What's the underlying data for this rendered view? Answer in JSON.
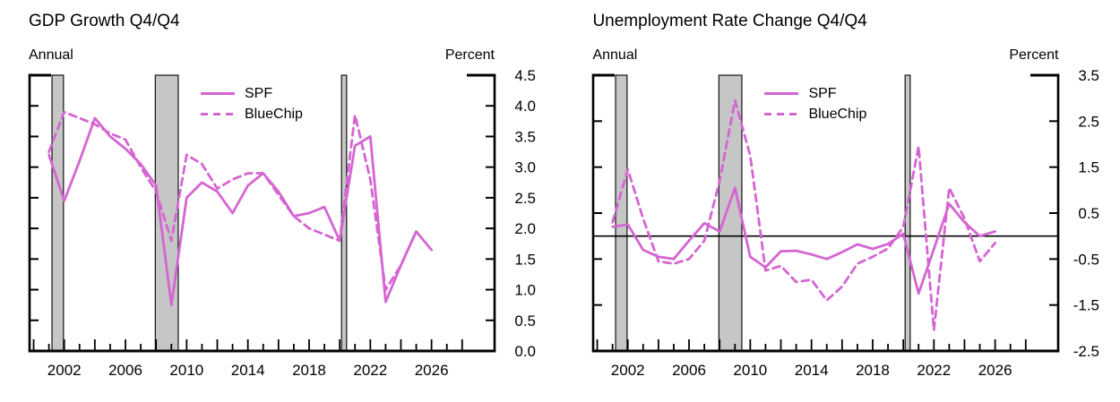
{
  "colors": {
    "line": "#d565d2",
    "band_fill": "#c6c6c6",
    "band_border": "#111111",
    "axis": "#000000",
    "background": "#ffffff"
  },
  "chart_data": [
    {
      "type": "line",
      "title": "GDP Growth Q4/Q4",
      "top_left_label": "Annual",
      "top_right_label": "Percent",
      "legend": [
        {
          "label": "SPF",
          "style": "solid"
        },
        {
          "label": "BlueChip",
          "style": "dashed"
        }
      ],
      "y_axis": {
        "min": 0.0,
        "max": 4.5,
        "tick_values": [
          0.0,
          0.5,
          1.0,
          1.5,
          2.0,
          2.5,
          3.0,
          3.5,
          4.0,
          4.5
        ],
        "tick_labels": [
          "0.0",
          "0.5",
          "1.0",
          "1.5",
          "2.0",
          "2.5",
          "3.0",
          "3.5",
          "4.0",
          "4.5"
        ]
      },
      "x_axis": {
        "tick_start": 2000,
        "tick_end": 2028,
        "label_years": [
          2002,
          2006,
          2010,
          2014,
          2018,
          2022,
          2026
        ],
        "labels": [
          "2002",
          "2006",
          "2010",
          "2014",
          "2018",
          "2022",
          "2026"
        ]
      },
      "zero_line": false,
      "recession_bands": [
        [
          2001.2,
          2001.95
        ],
        [
          2007.95,
          2009.45
        ],
        [
          2020.12,
          2020.45
        ]
      ],
      "series": [
        {
          "name": "SPF",
          "style": "solid",
          "years": [
            2001,
            2002,
            2003,
            2004,
            2005,
            2006,
            2007,
            2008,
            2009,
            2010,
            2011,
            2012,
            2013,
            2014,
            2015,
            2016,
            2017,
            2018,
            2019,
            2020,
            2021,
            2022,
            2023,
            2024,
            2025,
            2026
          ],
          "values": [
            3.2,
            2.45,
            3.1,
            3.8,
            3.5,
            3.3,
            3.05,
            2.7,
            0.75,
            2.5,
            2.75,
            2.6,
            2.25,
            2.7,
            2.9,
            2.6,
            2.2,
            2.25,
            2.35,
            1.8,
            3.35,
            3.5,
            0.8,
            1.4,
            1.95,
            1.65
          ]
        },
        {
          "name": "BlueChip",
          "style": "dashed",
          "years": [
            2001,
            2002,
            2003,
            2004,
            2005,
            2006,
            2007,
            2008,
            2009,
            2010,
            2011,
            2012,
            2013,
            2014,
            2015,
            2016,
            2017,
            2018,
            2019,
            2020,
            2021,
            2022,
            2023,
            2024,
            2025
          ],
          "values": [
            3.25,
            3.9,
            3.8,
            3.7,
            3.55,
            3.45,
            3.0,
            2.6,
            1.8,
            3.2,
            3.05,
            2.65,
            2.8,
            2.9,
            2.9,
            2.55,
            2.2,
            2.0,
            1.9,
            1.8,
            3.85,
            2.8,
            1.0,
            1.4,
            1.95
          ]
        }
      ]
    },
    {
      "type": "line",
      "title": "Unemployment Rate Change Q4/Q4",
      "top_left_label": "Annual",
      "top_right_label": "Percent",
      "legend": [
        {
          "label": "SPF",
          "style": "solid"
        },
        {
          "label": "BlueChip",
          "style": "dashed"
        }
      ],
      "y_axis": {
        "min": -2.5,
        "max": 3.5,
        "tick_values": [
          -2.5,
          -1.5,
          -0.5,
          0.5,
          1.5,
          2.5,
          3.5
        ],
        "tick_labels": [
          "-2.5",
          "-1.5",
          "-0.5",
          "0.5",
          "1.5",
          "2.5",
          "3.5"
        ]
      },
      "x_axis": {
        "tick_start": 2000,
        "tick_end": 2028,
        "label_years": [
          2002,
          2006,
          2010,
          2014,
          2018,
          2022,
          2026
        ],
        "labels": [
          "2002",
          "2006",
          "2010",
          "2014",
          "2018",
          "2022",
          "2026"
        ]
      },
      "zero_line": true,
      "recession_bands": [
        [
          2001.2,
          2001.95
        ],
        [
          2007.95,
          2009.45
        ],
        [
          2020.12,
          2020.45
        ]
      ],
      "series": [
        {
          "name": "SPF",
          "style": "solid",
          "years": [
            2001,
            2002,
            2003,
            2004,
            2005,
            2006,
            2007,
            2008,
            2009,
            2010,
            2011,
            2012,
            2013,
            2014,
            2015,
            2016,
            2017,
            2018,
            2019,
            2020,
            2021,
            2022,
            2023,
            2024,
            2025,
            2026
          ],
          "values": [
            0.2,
            0.25,
            -0.3,
            -0.45,
            -0.5,
            -0.1,
            0.28,
            0.1,
            1.05,
            -0.45,
            -0.68,
            -0.33,
            -0.32,
            -0.4,
            -0.5,
            -0.35,
            -0.18,
            -0.28,
            -0.17,
            0.05,
            -1.25,
            -0.28,
            0.7,
            0.3,
            0.0,
            0.1
          ]
        },
        {
          "name": "BlueChip",
          "style": "dashed",
          "years": [
            2001,
            2002,
            2003,
            2004,
            2005,
            2006,
            2007,
            2008,
            2009,
            2010,
            2011,
            2012,
            2013,
            2014,
            2015,
            2016,
            2017,
            2018,
            2019,
            2020,
            2021,
            2022,
            2023,
            2024,
            2025,
            2026
          ],
          "values": [
            0.3,
            1.45,
            0.38,
            -0.55,
            -0.6,
            -0.5,
            -0.1,
            1.2,
            2.95,
            1.75,
            -0.75,
            -0.65,
            -1.0,
            -0.95,
            -1.4,
            -1.1,
            -0.6,
            -0.45,
            -0.27,
            0.2,
            1.95,
            -2.05,
            1.05,
            0.38,
            -0.55,
            -0.15
          ]
        }
      ]
    }
  ]
}
